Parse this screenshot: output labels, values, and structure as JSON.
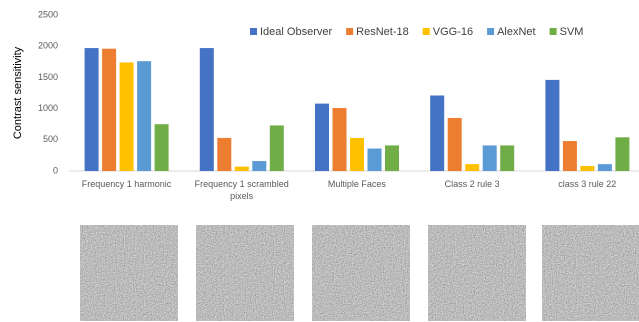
{
  "chart_data": {
    "type": "bar",
    "y_label": "Contrast sensitivity",
    "categories": [
      "Frequency 1 harmonic",
      "Frequency 1 scrambled pixels",
      "Multiple Faces",
      "Class 2 rule 3",
      "class 3 rule 22"
    ],
    "series": [
      {
        "name": "Ideal Observer",
        "color": "#4472c4",
        "values": [
          1970,
          1970,
          1080,
          1210,
          1460
        ]
      },
      {
        "name": "ResNet-18",
        "color": "#ed7d31",
        "values": [
          1960,
          530,
          1010,
          850,
          480
        ]
      },
      {
        "name": "VGG-16",
        "color": "#ffc000",
        "values": [
          1740,
          70,
          530,
          110,
          80
        ]
      },
      {
        "name": "AlexNet",
        "color": "#5b9bd5",
        "values": [
          1760,
          160,
          360,
          410,
          110
        ]
      },
      {
        "name": "SVM",
        "color": "#70ad47",
        "values": [
          750,
          730,
          410,
          410,
          540
        ]
      }
    ],
    "ylim": [
      0,
      2500
    ],
    "yticks": [
      0,
      500,
      1000,
      1500,
      2000,
      2500
    ],
    "grid": false
  }
}
